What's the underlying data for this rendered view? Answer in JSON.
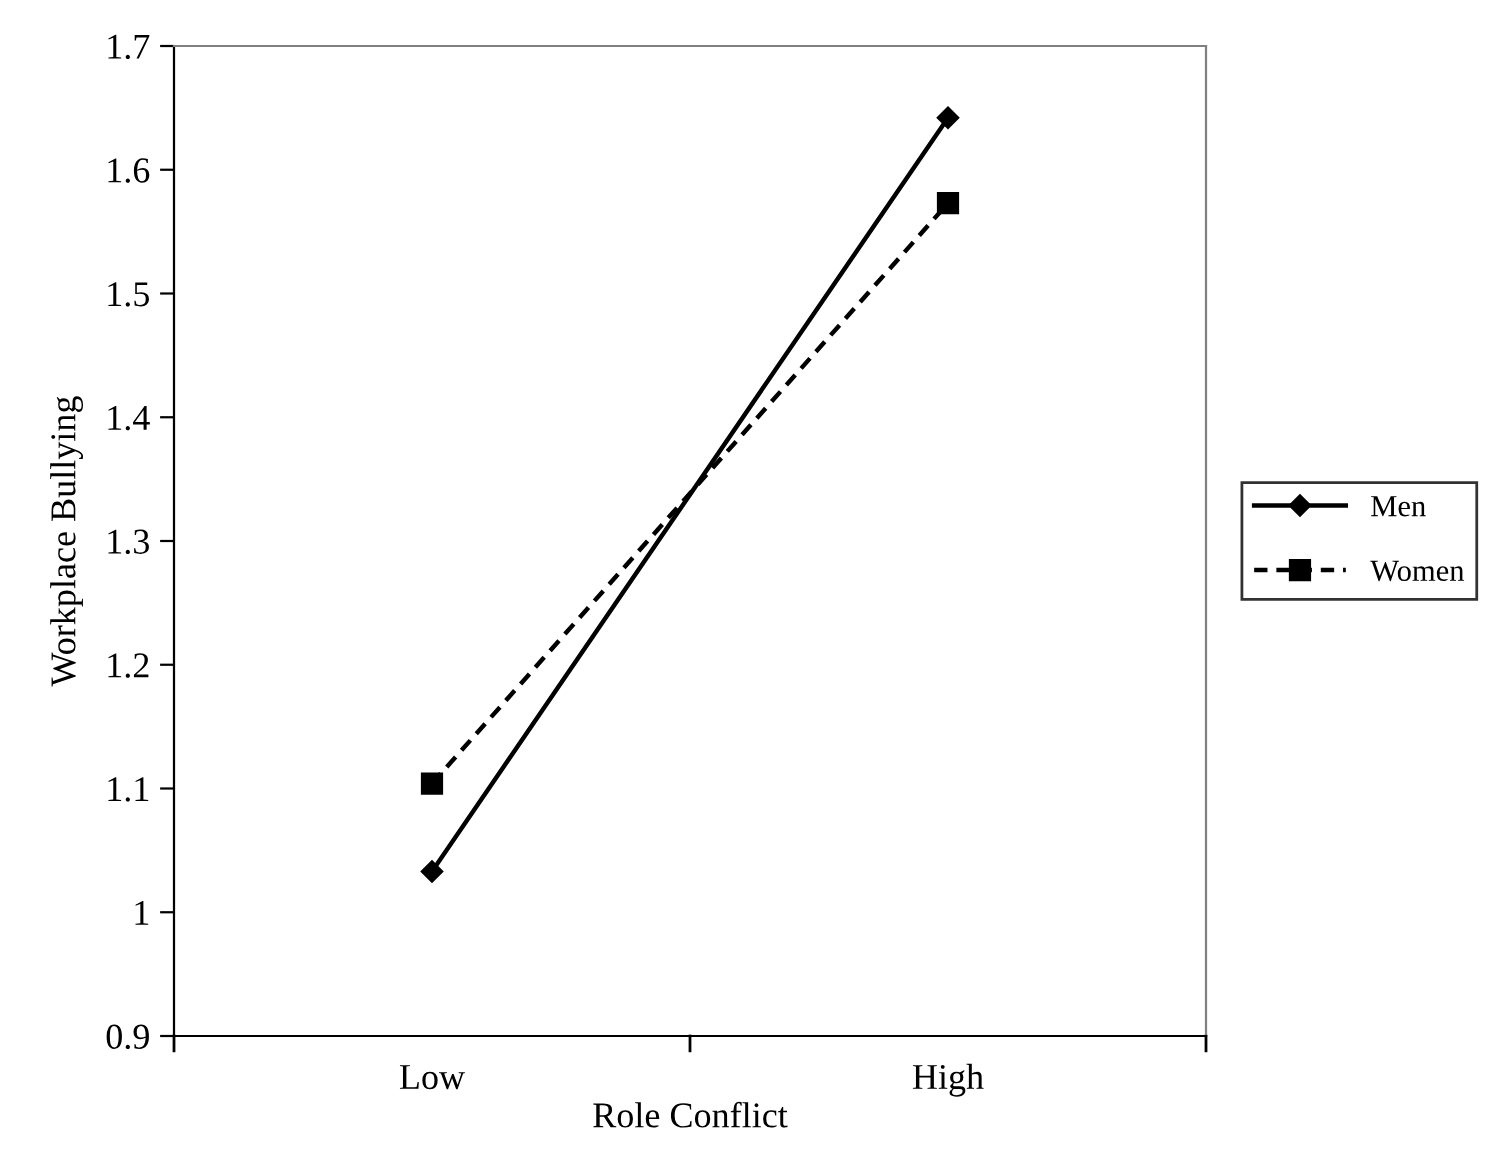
{
  "chart_data": {
    "type": "line",
    "xlabel": "Role Conflict",
    "ylabel": "Workplace Bullying",
    "categories": [
      "Low",
      "High"
    ],
    "series": [
      {
        "name": "Men",
        "color": "#000000",
        "values": [
          1.033,
          1.642
        ],
        "marker": "diamond",
        "line_style": "solid"
      },
      {
        "name": "Women",
        "color": "#000000",
        "values": [
          1.104,
          1.573
        ],
        "marker": "square",
        "line_style": "dashed"
      }
    ],
    "ylim": [
      0.9,
      1.7
    ],
    "yticks": [
      0.9,
      1,
      1.1,
      1.2,
      1.3,
      1.4,
      1.5,
      1.6,
      1.7
    ],
    "grid": false,
    "legend": "right"
  }
}
